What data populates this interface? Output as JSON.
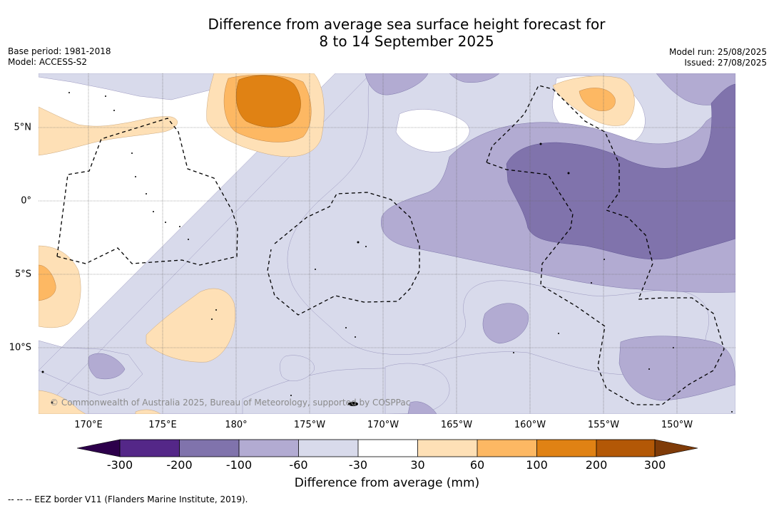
{
  "title": {
    "line1": "Difference from average sea surface height forecast for",
    "line2": "8 to 14 September 2025"
  },
  "meta_left": {
    "base_period": "Base period: 1981-2018",
    "model": "Model: ACCESS-S2"
  },
  "meta_right": {
    "model_run": "Model run: 25/08/2025",
    "issued": "Issued: 27/08/2025"
  },
  "map": {
    "longitude_labels": [
      "170°E",
      "175°E",
      "180°",
      "175°W",
      "170°W",
      "165°W",
      "160°W",
      "155°W",
      "150°W"
    ],
    "latitude_labels": [
      "5°N",
      "0°",
      "5°S",
      "10°S"
    ],
    "copyright": "© Commonwealth of Australia 2025, Bureau of Meteorology, supported by COSPPac",
    "gridlines": true,
    "contour_legend_levels_mm": [
      -300,
      -200,
      -100,
      -60,
      -30,
      30,
      60,
      100,
      200,
      300
    ]
  },
  "colorbar": {
    "ticks": [
      "-300",
      "-200",
      "-100",
      "-60",
      "-30",
      "30",
      "60",
      "100",
      "200",
      "300"
    ],
    "label": "Difference from average (mm)",
    "colors": {
      "below_-300": "#2d004b",
      "-300_-200": "#542788",
      "-200_-100": "#8073ac",
      "-100_-60": "#b2abd2",
      "-60_-30": "#d8daeb",
      "-30_30": "#ffffff",
      "30_60": "#fee0b6",
      "60_100": "#fdb863",
      "100_200": "#e08214",
      "200_300": "#b35806",
      "above_300": "#7f3b08"
    }
  },
  "eez_note": "--  --  -- EEZ border V11 (Flanders Marine Institute, 2019)."
}
